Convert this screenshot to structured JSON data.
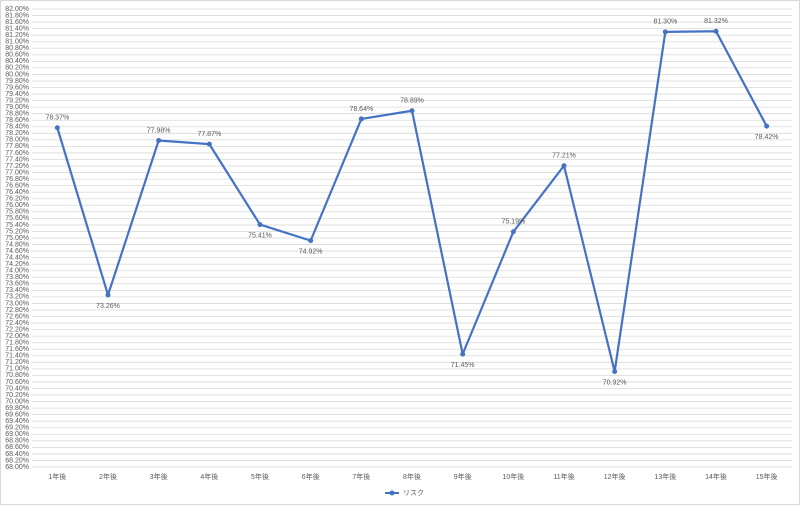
{
  "chart_data": {
    "type": "line",
    "categories": [
      "1年後",
      "2年後",
      "3年後",
      "4年後",
      "5年後",
      "6年後",
      "7年後",
      "8年後",
      "9年後",
      "10年後",
      "11年後",
      "12年後",
      "13年後",
      "14年後",
      "15年後"
    ],
    "series": [
      {
        "name": "リスク",
        "color": "#4472c4",
        "values": [
          78.37,
          73.26,
          77.98,
          77.87,
          75.41,
          74.92,
          78.64,
          78.89,
          71.45,
          75.19,
          77.21,
          70.92,
          81.3,
          81.32,
          78.42
        ],
        "value_labels": [
          "78.37%",
          "73.26%",
          "77.98%",
          "77.87%",
          "75.41%",
          "74.92%",
          "78.64%",
          "78.89%",
          "71.45%",
          "75.19%",
          "77.21%",
          "70.92%",
          "81.30%",
          "81.32%",
          "78.42%"
        ]
      }
    ],
    "ylim": [
      68,
      82
    ],
    "yticks": [
      {
        "value": 68,
        "label": "68.00%"
      },
      {
        "value": 68.2,
        "label": "68.20%"
      },
      {
        "value": 68.4,
        "label": "68.40%"
      },
      {
        "value": 68.6,
        "label": "68.60%"
      },
      {
        "value": 68.8,
        "label": "68.80%"
      },
      {
        "value": 69,
        "label": "69.00%"
      },
      {
        "value": 69.2,
        "label": "69.20%"
      },
      {
        "value": 69.4,
        "label": "69.40%"
      },
      {
        "value": 69.6,
        "label": "69.60%"
      },
      {
        "value": 69.8,
        "label": "69.80%"
      },
      {
        "value": 70,
        "label": "70.00%"
      },
      {
        "value": 70.2,
        "label": "70.20%"
      },
      {
        "value": 70.4,
        "label": "70.40%"
      },
      {
        "value": 70.6,
        "label": "70.60%"
      },
      {
        "value": 70.8,
        "label": "70.80%"
      },
      {
        "value": 71,
        "label": "71.00%"
      },
      {
        "value": 71.2,
        "label": "71.20%"
      },
      {
        "value": 71.4,
        "label": "71.40%"
      },
      {
        "value": 71.6,
        "label": "71.60%"
      },
      {
        "value": 71.8,
        "label": "71.80%"
      },
      {
        "value": 72,
        "label": "72.00%"
      },
      {
        "value": 72.2,
        "label": "72.20%"
      },
      {
        "value": 72.4,
        "label": "72.40%"
      },
      {
        "value": 72.6,
        "label": "72.60%"
      },
      {
        "value": 72.8,
        "label": "72.80%"
      },
      {
        "value": 73,
        "label": "73.00%"
      },
      {
        "value": 73.2,
        "label": "73.20%"
      },
      {
        "value": 73.4,
        "label": "73.40%"
      },
      {
        "value": 73.6,
        "label": "73.60%"
      },
      {
        "value": 73.8,
        "label": "73.80%"
      },
      {
        "value": 74,
        "label": "74.00%"
      },
      {
        "value": 74.2,
        "label": "74.20%"
      },
      {
        "value": 74.4,
        "label": "74.40%"
      },
      {
        "value": 74.6,
        "label": "74.60%"
      },
      {
        "value": 74.8,
        "label": "74.80%"
      },
      {
        "value": 75,
        "label": "75.00%"
      },
      {
        "value": 75.2,
        "label": "75.20%"
      },
      {
        "value": 75.4,
        "label": "75.40%"
      },
      {
        "value": 75.6,
        "label": "75.60%"
      },
      {
        "value": 75.8,
        "label": "75.80%"
      },
      {
        "value": 76,
        "label": "76.00%"
      },
      {
        "value": 76.2,
        "label": "76.20%"
      },
      {
        "value": 76.4,
        "label": "76.40%"
      },
      {
        "value": 76.6,
        "label": "76.60%"
      },
      {
        "value": 76.8,
        "label": "76.80%"
      },
      {
        "value": 77,
        "label": "77.00%"
      },
      {
        "value": 77.2,
        "label": "77.20%"
      },
      {
        "value": 77.4,
        "label": "77.40%"
      },
      {
        "value": 77.6,
        "label": "77.60%"
      },
      {
        "value": 77.8,
        "label": "77.80%"
      },
      {
        "value": 78,
        "label": "78.00%"
      },
      {
        "value": 78.2,
        "label": "78.20%"
      },
      {
        "value": 78.4,
        "label": "78.40%"
      },
      {
        "value": 78.6,
        "label": "78.60%"
      },
      {
        "value": 78.8,
        "label": "78.80%"
      },
      {
        "value": 79,
        "label": "79.00%"
      },
      {
        "value": 79.2,
        "label": "79.20%"
      },
      {
        "value": 79.4,
        "label": "79.40%"
      },
      {
        "value": 79.6,
        "label": "79.60%"
      },
      {
        "value": 79.8,
        "label": "79.80%"
      },
      {
        "value": 80,
        "label": "80.00%"
      },
      {
        "value": 80.2,
        "label": "80.20%"
      },
      {
        "value": 80.4,
        "label": "80.40%"
      },
      {
        "value": 80.6,
        "label": "80.60%"
      },
      {
        "value": 80.8,
        "label": "80.80%"
      },
      {
        "value": 81,
        "label": "81.00%"
      },
      {
        "value": 81.2,
        "label": "81.20%"
      },
      {
        "value": 81.4,
        "label": "81.40%"
      },
      {
        "value": 81.6,
        "label": "81.60%"
      },
      {
        "value": 81.8,
        "label": "81.80%"
      },
      {
        "value": 82,
        "label": "82.00%"
      }
    ],
    "grid": true,
    "legend": "bottom"
  }
}
